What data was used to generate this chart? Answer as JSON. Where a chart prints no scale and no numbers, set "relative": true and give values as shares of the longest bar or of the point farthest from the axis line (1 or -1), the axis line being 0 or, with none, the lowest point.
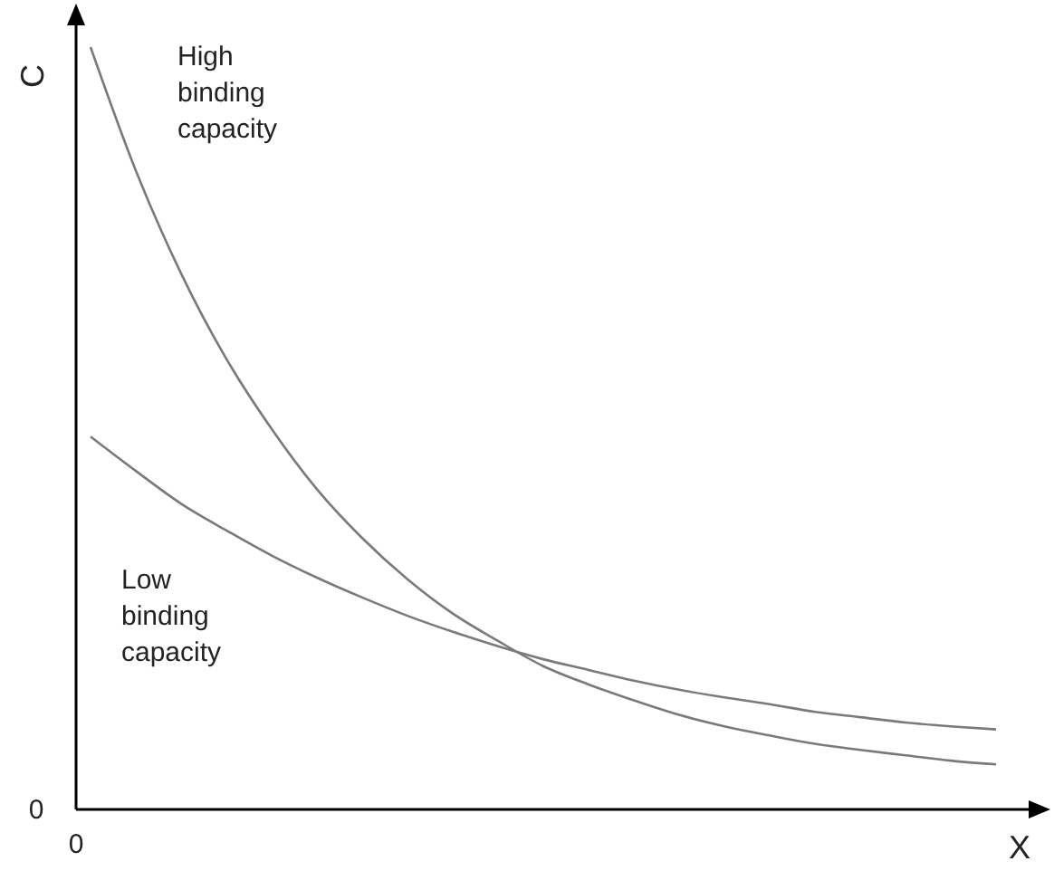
{
  "chart_data": {
    "type": "line",
    "relative": true,
    "xlabel": "X",
    "ylabel": "C",
    "annotations": [
      "0",
      "0"
    ],
    "categories": [
      null,
      null,
      null,
      null,
      null,
      null,
      null,
      null,
      null,
      null,
      null,
      null,
      null,
      null,
      null,
      null,
      null,
      null,
      null,
      null,
      null
    ],
    "series": [
      {
        "name": "High binding capacity",
        "color": "#7a7a7a",
        "values": [
          1.0,
          0.838,
          0.703,
          0.591,
          0.499,
          0.42,
          0.356,
          0.302,
          0.257,
          0.221,
          0.188,
          0.164,
          0.143,
          0.124,
          0.109,
          0.097,
          0.086,
          0.078,
          0.071,
          0.064,
          0.059
        ]
      },
      {
        "name": "Low binding capacity",
        "color": "#7a7a7a",
        "values": [
          0.489,
          0.444,
          0.401,
          0.366,
          0.333,
          0.304,
          0.278,
          0.254,
          0.233,
          0.214,
          0.197,
          0.183,
          0.169,
          0.157,
          0.147,
          0.138,
          0.128,
          0.121,
          0.114,
          0.109,
          0.105
        ]
      }
    ],
    "line_style": "solid"
  }
}
